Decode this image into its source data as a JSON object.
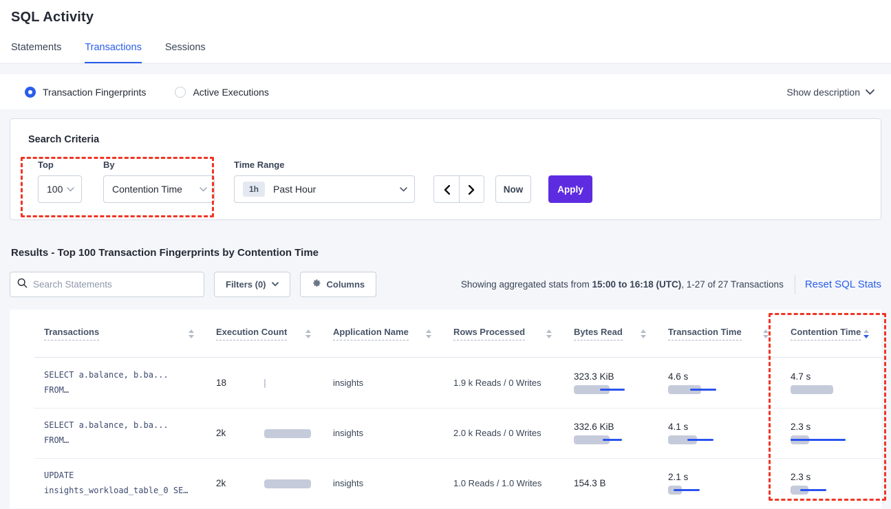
{
  "page_title": "SQL Activity",
  "tabs": [
    {
      "label": "Statements",
      "active": false
    },
    {
      "label": "Transactions",
      "active": true
    },
    {
      "label": "Sessions",
      "active": false
    }
  ],
  "view_toggle": {
    "options": [
      {
        "label": "Transaction Fingerprints",
        "selected": true
      },
      {
        "label": "Active Executions",
        "selected": false
      }
    ],
    "show_description_label": "Show description"
  },
  "search_criteria": {
    "title": "Search Criteria",
    "top": {
      "label": "Top",
      "value": "100"
    },
    "by": {
      "label": "By",
      "value": "Contention Time"
    },
    "time_range": {
      "label": "Time Range",
      "badge": "1h",
      "value": "Past Hour"
    },
    "now_label": "Now",
    "apply_label": "Apply"
  },
  "results": {
    "heading": "Results - Top 100 Transaction Fingerprints by Contention Time",
    "search_placeholder": "Search Statements",
    "filters_label": "Filters (0)",
    "columns_label": "Columns",
    "stats_prefix": "Showing aggregated stats from ",
    "stats_bold": "15:00 to 16:18 (UTC)",
    "stats_suffix": ", 1-27 of 27 Transactions",
    "reset_label": "Reset SQL Stats"
  },
  "table": {
    "columns": [
      {
        "label": "Transactions",
        "sort": "none"
      },
      {
        "label": "Execution Count",
        "sort": "none"
      },
      {
        "label": "Application Name",
        "sort": "none"
      },
      {
        "label": "Rows Processed",
        "sort": "none"
      },
      {
        "label": "Bytes Read",
        "sort": "none"
      },
      {
        "label": "Transaction Time",
        "sort": "none"
      },
      {
        "label": "Contention Time",
        "sort": "desc"
      }
    ],
    "rows": [
      {
        "query_line1": "SELECT a.balance, b.ba...",
        "query_line2": "FROM…",
        "execution_count": {
          "value": "18",
          "bar": 2
        },
        "application_name": "insights",
        "rows_processed": "1.9 k Reads / 0 Writes",
        "bytes_read": {
          "value": "323.3 KiB",
          "bar": 52,
          "line": [
            38,
            74
          ]
        },
        "transaction_time": {
          "value": "4.6 s",
          "bar": 48,
          "line": [
            32,
            70
          ]
        },
        "contention_time": {
          "value": "4.7 s",
          "bar": 62,
          "line": null
        }
      },
      {
        "query_line1": "SELECT a.balance, b.ba...",
        "query_line2": "FROM…",
        "execution_count": {
          "value": "2k",
          "bar": 68
        },
        "application_name": "insights",
        "rows_processed": "2.0 k Reads / 0 Writes",
        "bytes_read": {
          "value": "332.6 KiB",
          "bar": 52,
          "line": [
            42,
            70
          ]
        },
        "transaction_time": {
          "value": "4.1 s",
          "bar": 42,
          "line": [
            28,
            66
          ]
        },
        "contention_time": {
          "value": "2.3 s",
          "bar": 27,
          "line": [
            0,
            80
          ]
        }
      },
      {
        "query_line1": "UPDATE",
        "query_line2": "insights_workload_table_0 SE…",
        "execution_count": {
          "value": "2k",
          "bar": 68
        },
        "application_name": "insights",
        "rows_processed": "1.0 Reads / 1.0 Writes",
        "bytes_read": {
          "value": "154.3 B",
          "bar": 0,
          "line": null
        },
        "transaction_time": {
          "value": "2.1 s",
          "bar": 20,
          "line": [
            8,
            46
          ]
        },
        "contention_time": {
          "value": "2.3 s",
          "bar": 26,
          "line": [
            14,
            52
          ]
        }
      }
    ]
  },
  "colors": {
    "accent_blue": "#2b5dea",
    "accent_purple": "#5e2ce0",
    "bar_gray": "#c6cbdb",
    "bar_line_blue": "#2a53ef",
    "highlight_red": "#f03524"
  }
}
